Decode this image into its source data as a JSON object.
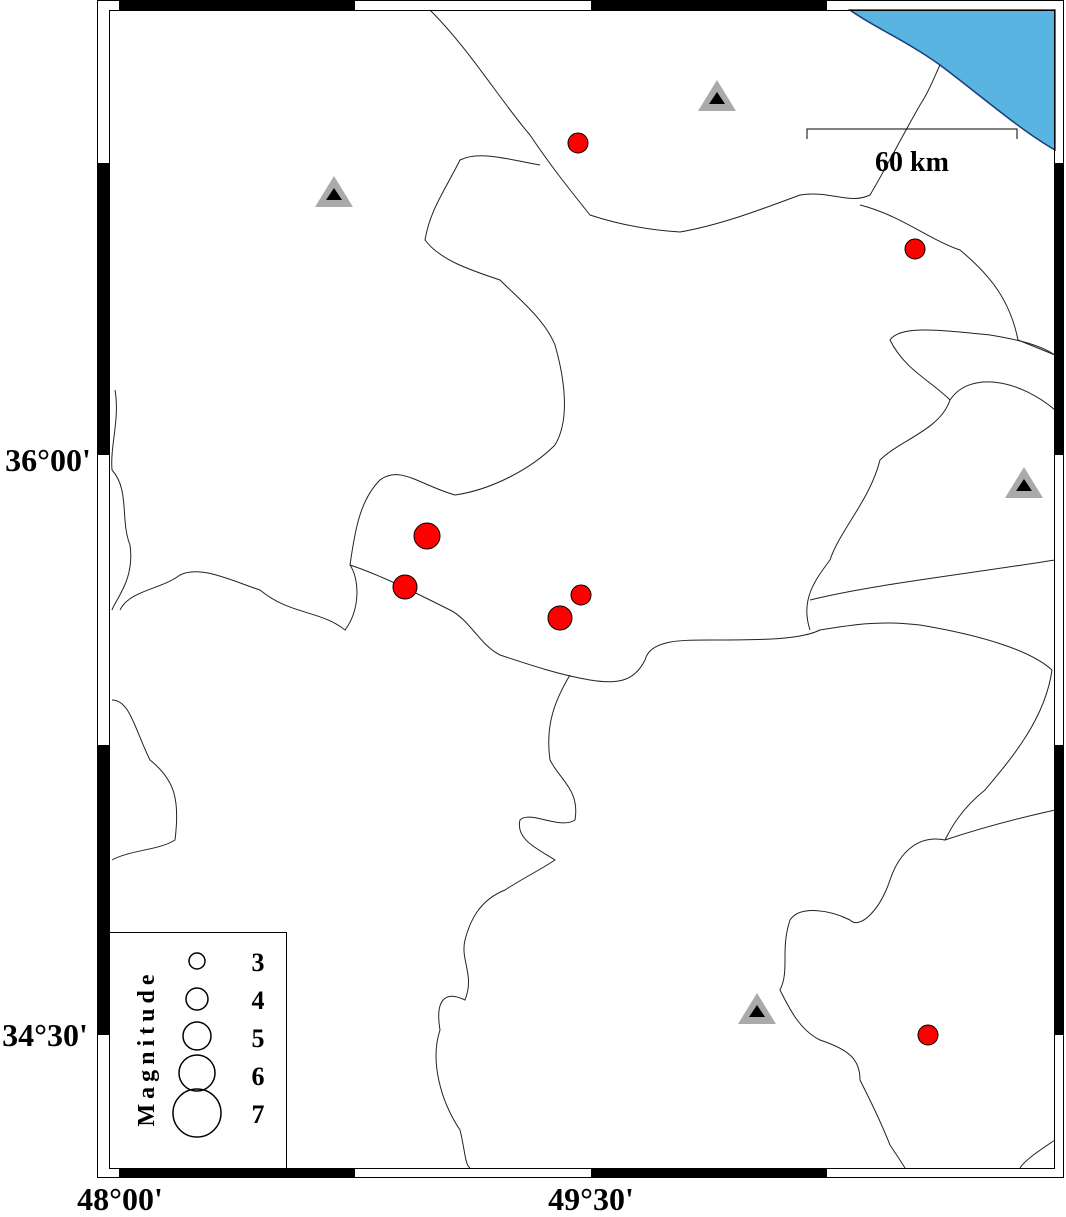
{
  "map": {
    "x_labels": [
      "48°00'",
      "49°30'"
    ],
    "y_labels": [
      "36°00'",
      "34°30'"
    ],
    "scale_bar": "60 km",
    "legend": {
      "title": "Magnitude",
      "labels": [
        "3",
        "4",
        "5",
        "6",
        "7"
      ]
    }
  }
}
